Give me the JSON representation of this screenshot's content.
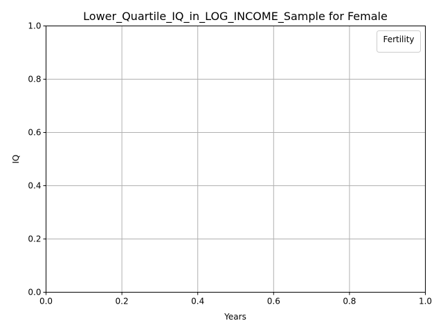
{
  "chart_data": {
    "type": "line",
    "title": "Lower_Quartile_IQ_in_LOG_INCOME_Sample for Female",
    "xlabel": "Years",
    "ylabel": "IQ",
    "xlim": [
      0.0,
      1.0
    ],
    "ylim": [
      0.0,
      1.0
    ],
    "xticks": [
      0.0,
      0.2,
      0.4,
      0.6,
      0.8,
      1.0
    ],
    "yticks": [
      0.0,
      0.2,
      0.4,
      0.6,
      0.8,
      1.0
    ],
    "xtick_labels": [
      "0.0",
      "0.2",
      "0.4",
      "0.6",
      "0.8",
      "1.0"
    ],
    "ytick_labels": [
      "0.0",
      "0.2",
      "0.4",
      "0.6",
      "0.8",
      "1.0"
    ],
    "grid": true,
    "legend": {
      "title": "Fertility",
      "placement": "top-right",
      "entries": []
    },
    "series": []
  },
  "colors": {
    "grid": "#b0b0b0",
    "axis": "#000000",
    "background": "#ffffff"
  }
}
